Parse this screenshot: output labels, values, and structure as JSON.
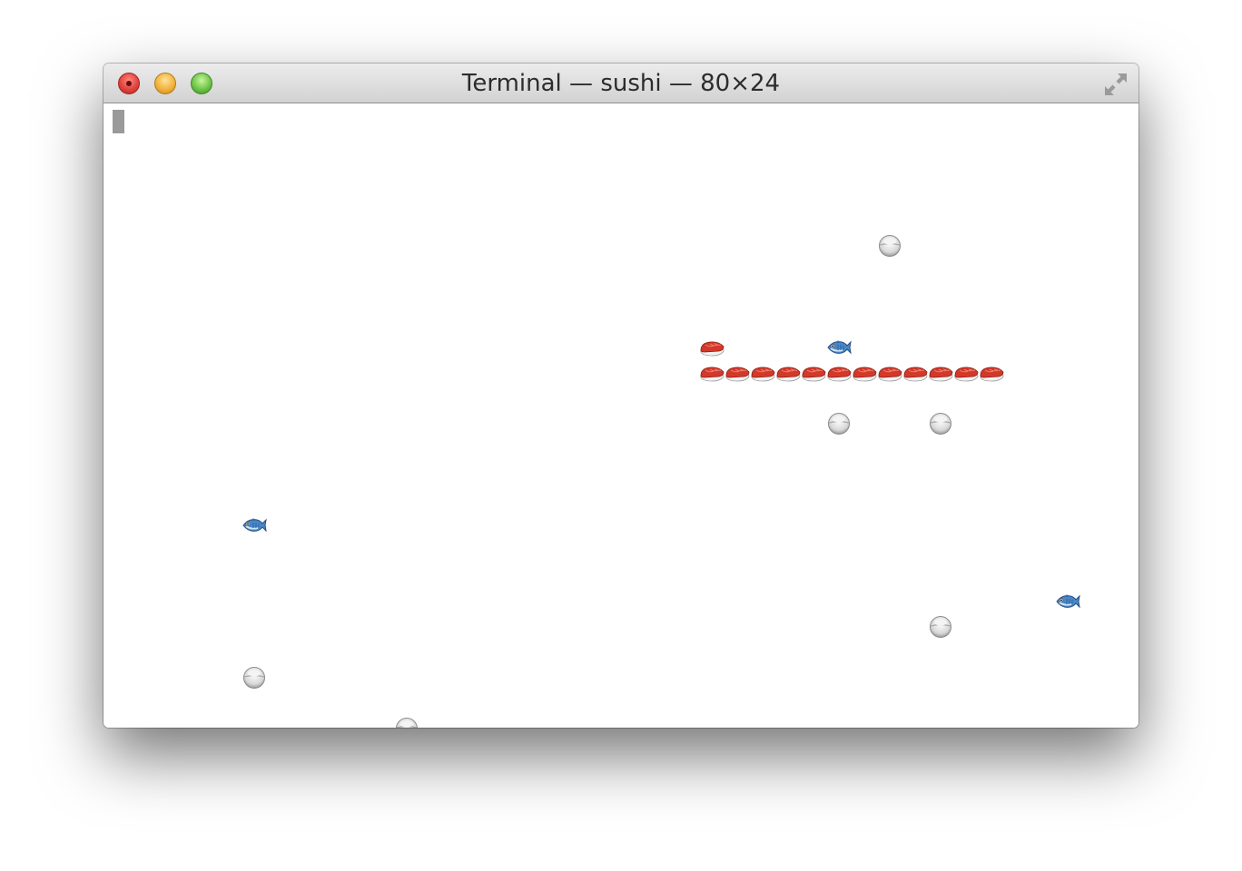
{
  "window": {
    "title": "Terminal — sushi — 80×24"
  },
  "icons": {
    "rice": "rice-bowl-icon",
    "fish": "fish-icon",
    "sushi": "sushi-icon"
  },
  "colors": {
    "sushi_red": "#d2392b",
    "fish_blue": "#3f7fc2",
    "rice_white": "#f2f2f2"
  },
  "game": {
    "grid_columns": 80,
    "grid_rows": 24,
    "sushi_head": {
      "col": 46,
      "row": 9
    },
    "sushi_body": [
      {
        "col": 46,
        "row": 10
      },
      {
        "col": 48,
        "row": 10
      },
      {
        "col": 50,
        "row": 10
      },
      {
        "col": 52,
        "row": 10
      },
      {
        "col": 54,
        "row": 10
      },
      {
        "col": 56,
        "row": 10
      },
      {
        "col": 58,
        "row": 10
      },
      {
        "col": 60,
        "row": 10
      },
      {
        "col": 62,
        "row": 10
      },
      {
        "col": 64,
        "row": 10
      },
      {
        "col": 66,
        "row": 10
      },
      {
        "col": 68,
        "row": 10
      }
    ],
    "fish": [
      {
        "col": 56,
        "row": 9
      },
      {
        "col": 10,
        "row": 16
      },
      {
        "col": 74,
        "row": 19
      }
    ],
    "rice": [
      {
        "col": 60,
        "row": 5
      },
      {
        "col": 56,
        "row": 12
      },
      {
        "col": 64,
        "row": 12
      },
      {
        "col": 64,
        "row": 20
      },
      {
        "col": 10,
        "row": 22
      },
      {
        "col": 22,
        "row": 24
      }
    ]
  }
}
